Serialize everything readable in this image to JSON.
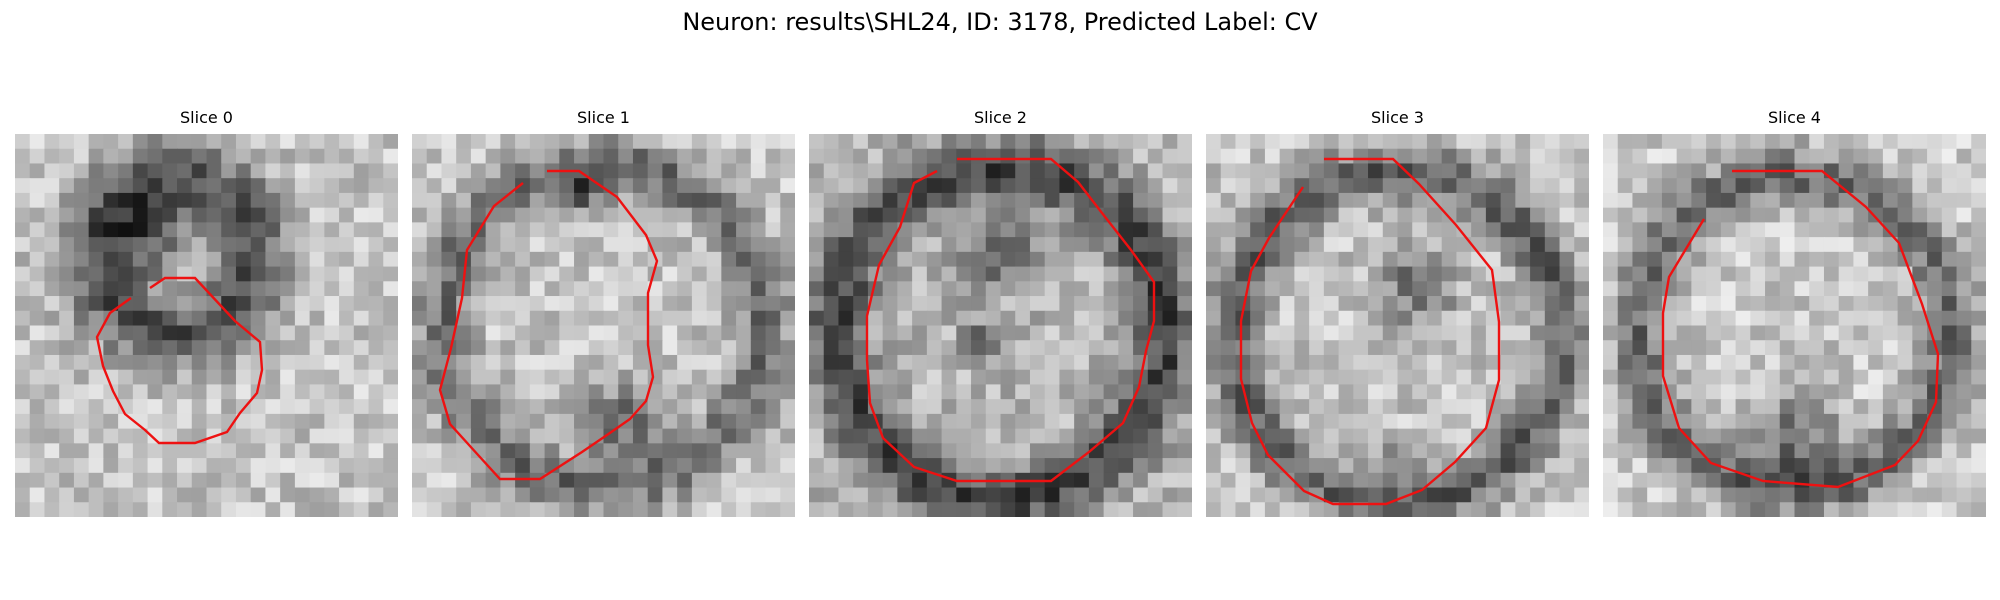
{
  "figure": {
    "title": "Neuron: results\\SHL24, ID: 3178, Predicted Label: CV"
  },
  "panels": [
    {
      "title": "Slice 0"
    },
    {
      "title": "Slice 1"
    },
    {
      "title": "Slice 2"
    },
    {
      "title": "Slice 3"
    },
    {
      "title": "Slice 4"
    }
  ],
  "colors": {
    "contour": "#ee1111",
    "background": "#ffffff"
  }
}
